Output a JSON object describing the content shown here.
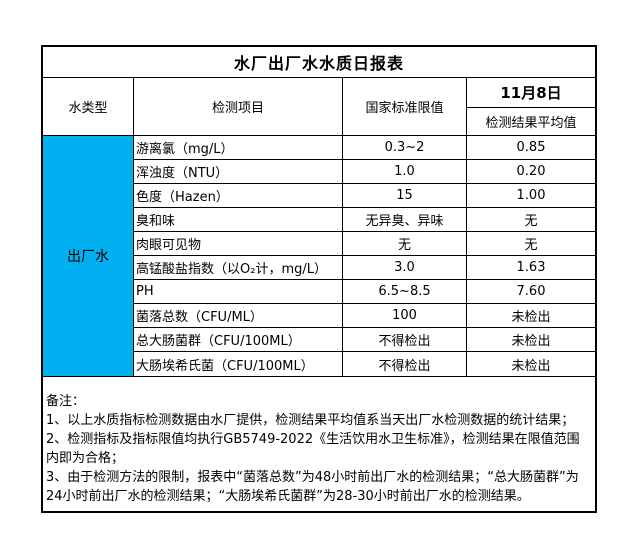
{
  "report": {
    "title": "水厂出厂水水质日报表",
    "date": "11月8日",
    "colors": {
      "highlight_cell": "#00B0F0",
      "border": "#000000",
      "background": "#FFFFFF"
    },
    "header": {
      "water_type": "水类型",
      "item": "检测项目",
      "limit": "国家标准限值",
      "result_avg": "检测结果平均值"
    },
    "water_type_value": "出厂水",
    "rows": [
      {
        "item": "游离氯（mg/L）",
        "limit": "0.3~2",
        "result": "0.85"
      },
      {
        "item": "浑浊度（NTU）",
        "limit": "1.0",
        "result": "0.20"
      },
      {
        "item": "色度（Hazen）",
        "limit": "15",
        "result": "1.00"
      },
      {
        "item": "臭和味",
        "limit": "无异臭、异味",
        "result": "无"
      },
      {
        "item": "肉眼可见物",
        "limit": "无",
        "result": "无"
      },
      {
        "item": "高锰酸盐指数（以O₂计，mg/L）",
        "limit": "3.0",
        "result": "1.63"
      },
      {
        "item": "PH",
        "limit": "6.5~8.5",
        "result": "7.60"
      },
      {
        "item": "菌落总数（CFU/ML）",
        "limit": "100",
        "result": "未检出"
      },
      {
        "item": "总大肠菌群（CFU/100ML）",
        "limit": "不得检出",
        "result": "未检出"
      },
      {
        "item": "大肠埃希氏菌（CFU/100ML）",
        "limit": "不得检出",
        "result": "未检出"
      }
    ],
    "notes": {
      "label": "备注：",
      "items": [
        "1、以上水质指标检测数据由水厂提供，检测结果平均值系当天出厂水检测数据的统计结果；",
        "2、检测指标及指标限值均执行GB5749-2022《生活饮用水卫生标准》，检测结果在限值范围内即为合格；",
        "3、由于检测方法的限制，报表中“菌落总数”为48小时前出厂水的检测结果；“总大肠菌群”为24小时前出厂水的检测结果；“大肠埃希氏菌群”为28-30小时前出厂水的检测结果。"
      ]
    }
  }
}
